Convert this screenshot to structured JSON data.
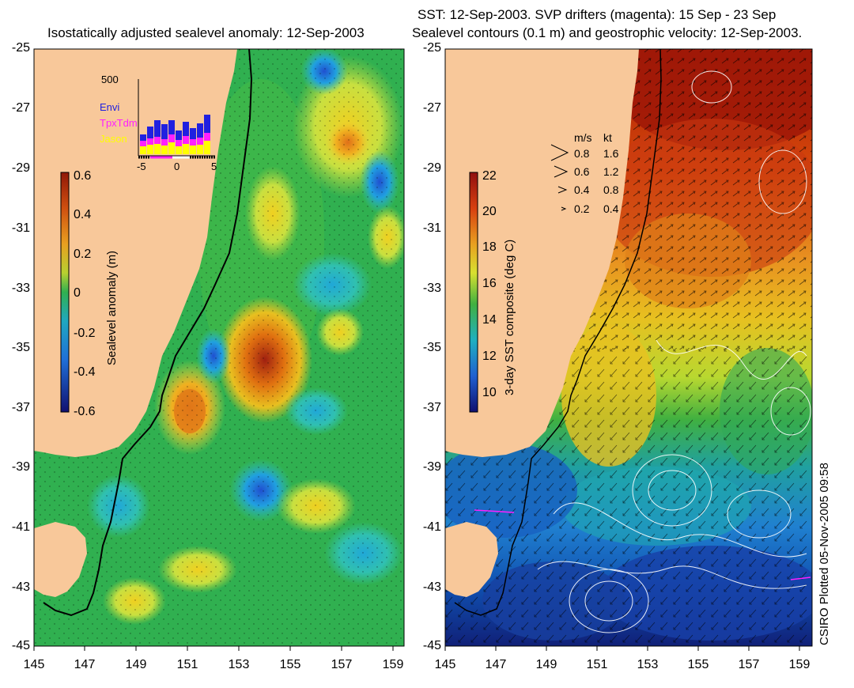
{
  "left_panel": {
    "title": "Isostatically adjusted sealevel anomaly: 12-Sep-2003",
    "colorbar_label": "Sealevel anomaly (m)",
    "colorbar_ticks": [
      "0.6",
      "0.4",
      "0.2",
      "0",
      "-0.2",
      "-0.4",
      "-0.6"
    ],
    "inset": {
      "ymax_label": "500",
      "x_ticks": [
        "-5",
        "0",
        "5"
      ],
      "legend": [
        {
          "label": "Envi",
          "color": "#2020e0"
        },
        {
          "label": "TpxTdm",
          "color": "#ff20ff"
        },
        {
          "label": "Jason",
          "color": "#ffff00"
        }
      ]
    }
  },
  "right_panel": {
    "title_line1": "SST: 12-Sep-2003. SVP drifters (magenta): 15 Sep - 23 Sep",
    "title_line2": "Sealevel contours (0.1 m) and geostrophic velocity: 12-Sep-2003.",
    "colorbar_label": "3-day SST composite (deg C)",
    "colorbar_ticks": [
      "22",
      "20",
      "18",
      "16",
      "14",
      "12",
      "10"
    ],
    "velocity_legend": {
      "header_ms": "m/s",
      "header_kt": "kt",
      "rows": [
        {
          "ms": "0.8",
          "kt": "1.6"
        },
        {
          "ms": "0.6",
          "kt": "1.2"
        },
        {
          "ms": "0.4",
          "kt": "0.8"
        },
        {
          "ms": "0.2",
          "kt": "0.4"
        }
      ]
    }
  },
  "y_ticks": [
    "-25",
    "-27",
    "-29",
    "-31",
    "-33",
    "-35",
    "-37",
    "-39",
    "-41",
    "-43",
    "-45"
  ],
  "x_ticks": [
    "145",
    "147",
    "149",
    "151",
    "153",
    "155",
    "157",
    "159"
  ],
  "credit": "CSIRO Plotted 05-Nov-2005 09:58",
  "colors": {
    "land": "#f8c89a",
    "ocean_base_left": "#30b050",
    "sst_warm": "#a01808",
    "sst_cold": "#1030a0"
  }
}
